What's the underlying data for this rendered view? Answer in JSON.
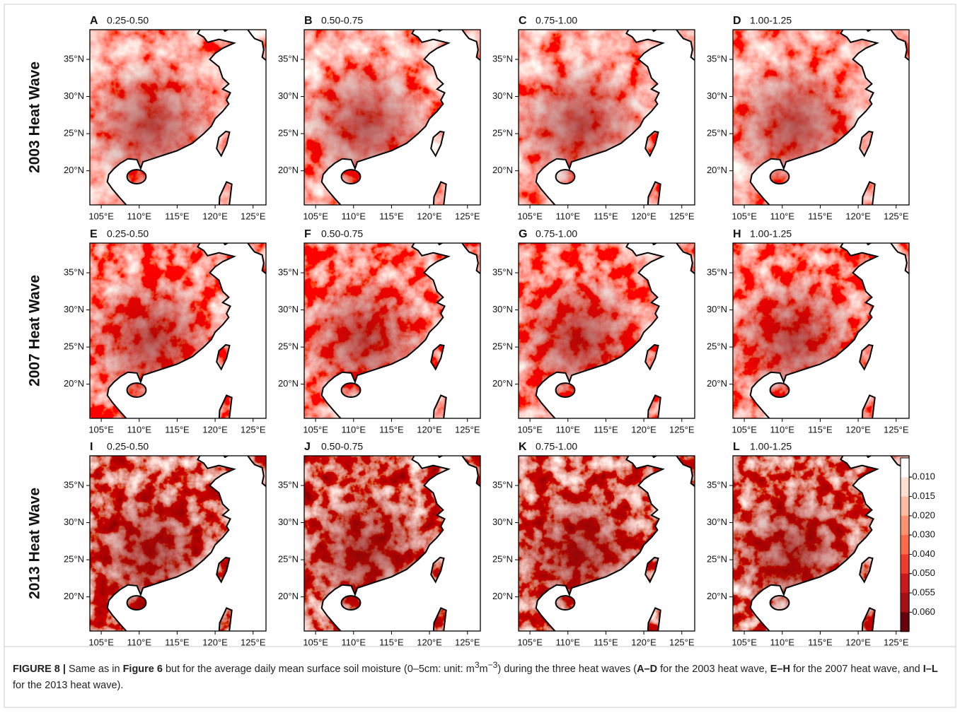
{
  "rows": [
    "2003 Heat Wave",
    "2007 Heat Wave",
    "2013 Heat Wave"
  ],
  "panels": [
    {
      "letter": "A",
      "range": "0.25-0.50"
    },
    {
      "letter": "B",
      "range": "0.50-0.75"
    },
    {
      "letter": "C",
      "range": "0.75-1.00"
    },
    {
      "letter": "D",
      "range": "1.00-1.25"
    },
    {
      "letter": "E",
      "range": "0.25-0.50"
    },
    {
      "letter": "F",
      "range": "0.50-0.75"
    },
    {
      "letter": "G",
      "range": "0.75-1.00"
    },
    {
      "letter": "H",
      "range": "1.00-1.25"
    },
    {
      "letter": "I",
      "range": "0.25-0.50"
    },
    {
      "letter": "J",
      "range": "0.50-0.75"
    },
    {
      "letter": "K",
      "range": "0.75-1.00"
    },
    {
      "letter": "L",
      "range": "1.00-1.25"
    }
  ],
  "lon_ticks": [
    "105°E",
    "110°E",
    "115°E",
    "120°E",
    "125°E"
  ],
  "lat_ticks": [
    "35°N",
    "30°N",
    "25°N",
    "20°N"
  ],
  "colorbar": {
    "ticks": [
      "-0.010",
      "-0.015",
      "-0.020",
      "-0.030",
      "-0.040",
      "-0.050",
      "-0.055",
      "-0.060"
    ]
  },
  "caption": {
    "segments": [
      {
        "text": "FIGURE 8 |",
        "style": "bold"
      },
      {
        "text": " Same as in ",
        "style": "normal"
      },
      {
        "text": "Figure 6",
        "style": "bold"
      },
      {
        "text": " but for the average daily mean surface soil moisture (0–5cm: unit: m",
        "style": "normal"
      },
      {
        "text": "3",
        "style": "sup"
      },
      {
        "text": "m",
        "style": "normal"
      },
      {
        "text": "−3",
        "style": "sup"
      },
      {
        "text": ") during the three heat waves (",
        "style": "normal"
      },
      {
        "text": "A–D",
        "style": "bold"
      },
      {
        "text": " for the 2003 heat wave, ",
        "style": "normal"
      },
      {
        "text": "E–H",
        "style": "bold"
      },
      {
        "text": " for the 2007 heat wave, and ",
        "style": "normal"
      },
      {
        "text": "I–L",
        "style": "bold"
      },
      {
        "text": " for the 2013 heat wave).",
        "style": "normal"
      }
    ]
  }
}
